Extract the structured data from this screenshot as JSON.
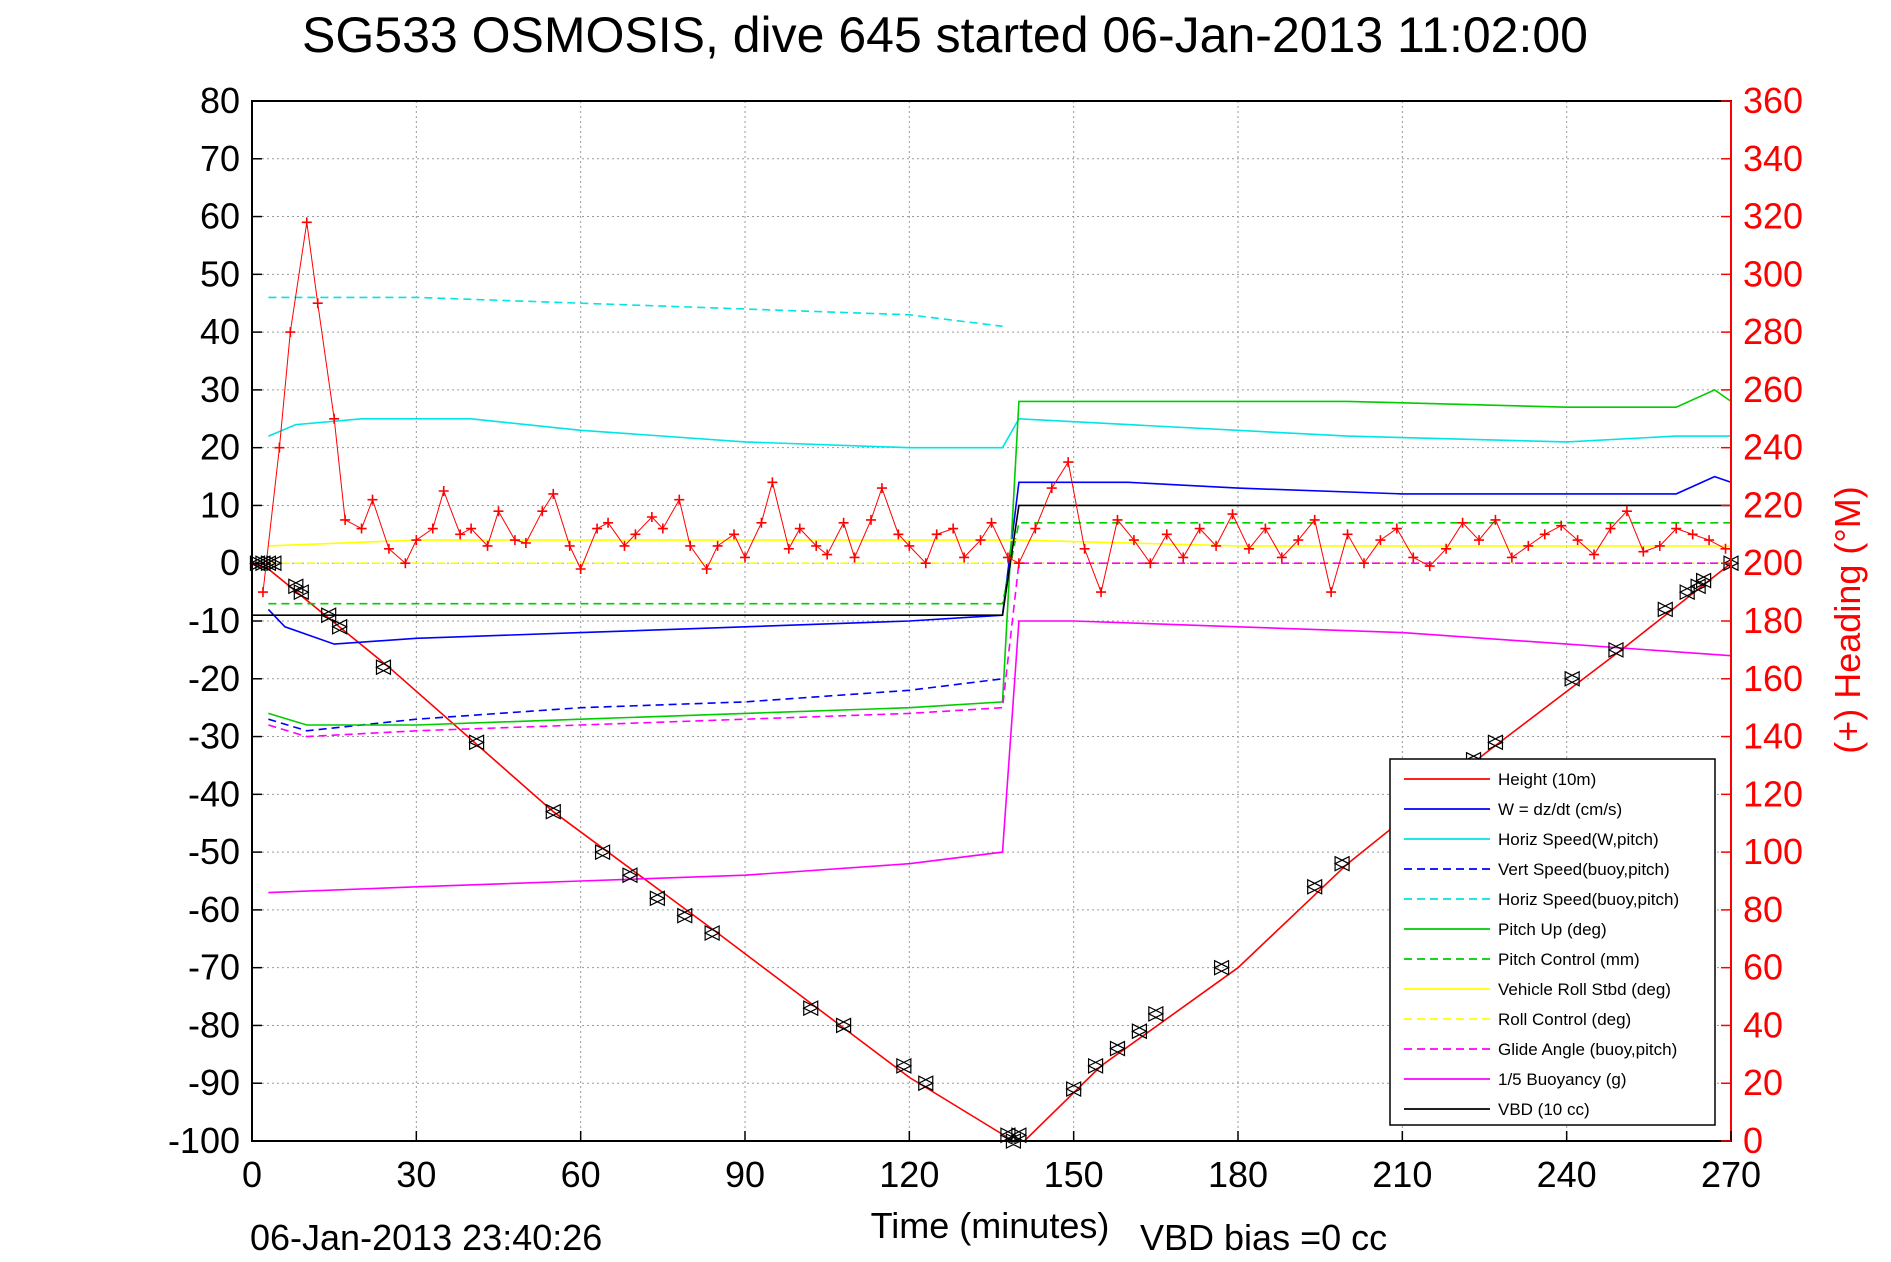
{
  "chart_data": {
    "type": "line",
    "title": "SG533 OSMOSIS, dive 645 started 06-Jan-2013 11:02:00",
    "xlabel": "Time (minutes)",
    "ylabel_right": "(+) Heading (°M)",
    "footer_date": "06-Jan-2013 23:40:26",
    "footer_vbd": "VBD bias =0 cc",
    "xlim": [
      0,
      270
    ],
    "ylim_left": [
      -100,
      80
    ],
    "ylim_right": [
      0,
      360
    ],
    "grid": true,
    "legend_placement": "bottom-right",
    "x_ticks": [
      "0",
      "30",
      "60",
      "90",
      "120",
      "150",
      "180",
      "210",
      "240",
      "270"
    ],
    "y_left_ticks": [
      "80",
      "70",
      "60",
      "50",
      "40",
      "30",
      "20",
      "10",
      "0",
      "-10",
      "-20",
      "-30",
      "-40",
      "-50",
      "-60",
      "-70",
      "-80",
      "-90",
      "-100"
    ],
    "y_right_ticks": [
      "360",
      "340",
      "320",
      "300",
      "280",
      "260",
      "240",
      "220",
      "200",
      "180",
      "160",
      "140",
      "120",
      "100",
      "80",
      "60",
      "40",
      "20",
      "0"
    ],
    "legend": [
      {
        "label": "Height (10m)",
        "color": "#ff0000",
        "dash": "solid"
      },
      {
        "label": "W  = dz/dt (cm/s)",
        "color": "#0000ff",
        "dash": "solid"
      },
      {
        "label": "Horiz Speed(W,pitch)",
        "color": "#00e5e5",
        "dash": "solid"
      },
      {
        "label": "Vert Speed(buoy,pitch)",
        "color": "#0000ff",
        "dash": "dashed"
      },
      {
        "label": "Horiz Speed(buoy,pitch)",
        "color": "#00e5e5",
        "dash": "dashed"
      },
      {
        "label": "Pitch Up (deg)",
        "color": "#00cc00",
        "dash": "solid"
      },
      {
        "label": "Pitch Control (mm)",
        "color": "#00cc00",
        "dash": "dashed"
      },
      {
        "label": "Vehicle Roll Stbd (deg)",
        "color": "#ffff00",
        "dash": "solid"
      },
      {
        "label": "Roll Control (deg)",
        "color": "#ffff00",
        "dash": "dashed"
      },
      {
        "label": "Glide Angle (buoy,pitch)",
        "color": "#ff00ff",
        "dash": "dashed"
      },
      {
        "label": "1/5 Buoyancy (g)",
        "color": "#ff00ff",
        "dash": "solid"
      },
      {
        "label": "VBD (10 cc)",
        "color": "#000000",
        "dash": "solid"
      }
    ],
    "series": [
      {
        "name": "Height (10m)",
        "color": "#ff0000",
        "x": [
          0,
          3,
          25,
          55,
          85,
          120,
          139,
          141,
          155,
          180,
          200,
          225,
          250,
          270
        ],
        "y": [
          0,
          -1,
          -18,
          -43,
          -64,
          -89,
          -100,
          -100,
          -87,
          -70,
          -52,
          -33,
          -15,
          0
        ]
      },
      {
        "name": "W  = dz/dt (cm/s)",
        "color": "#0000ff",
        "x": [
          3,
          6,
          15,
          30,
          60,
          90,
          120,
          137,
          140,
          160,
          180,
          210,
          240,
          260,
          267,
          270
        ],
        "y": [
          -8,
          -11,
          -14,
          -13,
          -12,
          -11,
          -10,
          -9,
          14,
          14,
          13,
          12,
          12,
          12,
          15,
          14
        ]
      },
      {
        "name": "Horiz Speed(W,pitch)",
        "color": "#00e5e5",
        "x": [
          3,
          8,
          20,
          40,
          60,
          90,
          120,
          137,
          140,
          160,
          200,
          240,
          260,
          270
        ],
        "y": [
          22,
          24,
          25,
          25,
          23,
          21,
          20,
          20,
          25,
          24,
          22,
          21,
          22,
          22
        ]
      },
      {
        "name": "Vert Speed(buoy,pitch)",
        "color": "#0000ff",
        "x": [
          3,
          10,
          30,
          60,
          90,
          120,
          137
        ],
        "y": [
          -27,
          -29,
          -27,
          -25,
          -24,
          -22,
          -20
        ]
      },
      {
        "name": "Horiz Speed(buoy,pitch)",
        "color": "#00e5e5",
        "x": [
          3,
          10,
          30,
          60,
          90,
          120,
          137
        ],
        "y": [
          46,
          46,
          46,
          45,
          44,
          43,
          41
        ]
      },
      {
        "name": "Pitch Up (deg)",
        "color": "#00cc00",
        "x": [
          3,
          10,
          30,
          60,
          90,
          120,
          137,
          140,
          160,
          200,
          240,
          260,
          267,
          270
        ],
        "y": [
          -26,
          -28,
          -28,
          -27,
          -26,
          -25,
          -24,
          28,
          28,
          28,
          27,
          27,
          30,
          28
        ]
      },
      {
        "name": "Pitch Control (mm)",
        "color": "#00cc00",
        "x": [
          3,
          10,
          60,
          120,
          137,
          140,
          200,
          270
        ],
        "y": [
          -7,
          -7,
          -7,
          -7,
          -7,
          7,
          7,
          7
        ]
      },
      {
        "name": "Vehicle Roll Stbd (deg)",
        "color": "#ffff00",
        "x": [
          3,
          30,
          60,
          90,
          120,
          137,
          140,
          180,
          220,
          270
        ],
        "y": [
          3,
          4,
          4,
          4,
          4,
          4,
          4,
          3,
          3,
          3
        ]
      },
      {
        "name": "Roll Control (deg)",
        "color": "#ffff00",
        "x": [
          3,
          60,
          137,
          140,
          270
        ],
        "y": [
          0,
          0,
          0,
          0,
          0
        ]
      },
      {
        "name": "Glide Angle (buoy,pitch)",
        "color": "#ff00ff",
        "x": [
          3,
          10,
          30,
          60,
          90,
          120,
          137,
          140,
          200,
          270
        ],
        "y": [
          -28,
          -30,
          -29,
          -28,
          -27,
          -26,
          -25,
          0,
          0,
          0
        ]
      },
      {
        "name": "1/5 Buoyancy (g)",
        "color": "#ff00ff",
        "x": [
          3,
          30,
          60,
          90,
          120,
          137,
          140,
          150,
          180,
          210,
          240,
          270
        ],
        "y": [
          -57,
          -56,
          -55,
          -54,
          -52,
          -50,
          -10,
          -10,
          -11,
          -12,
          -14,
          -16
        ]
      },
      {
        "name": "VBD (10 cc)",
        "color": "#000000",
        "x": [
          0,
          3,
          137,
          140,
          270
        ],
        "y": [
          -9,
          -9,
          -9,
          10,
          10
        ]
      }
    ],
    "heading": {
      "name": "Heading",
      "color": "#ff0000",
      "marker": "+",
      "axis": "right",
      "x": [
        2,
        5,
        7,
        10,
        12,
        15,
        17,
        20,
        22,
        25,
        28,
        30,
        33,
        35,
        38,
        40,
        43,
        45,
        48,
        50,
        53,
        55,
        58,
        60,
        63,
        65,
        68,
        70,
        73,
        75,
        78,
        80,
        83,
        85,
        88,
        90,
        93,
        95,
        98,
        100,
        103,
        105,
        108,
        110,
        113,
        115,
        118,
        120,
        123,
        125,
        128,
        130,
        133,
        135,
        138,
        140,
        143,
        146,
        149,
        152,
        155,
        158,
        161,
        164,
        167,
        170,
        173,
        176,
        179,
        182,
        185,
        188,
        191,
        194,
        197,
        200,
        203,
        206,
        209,
        212,
        215,
        218,
        221,
        224,
        227,
        230,
        233,
        236,
        239,
        242,
        245,
        248,
        251,
        254,
        257,
        260,
        263,
        266,
        269
      ],
      "y": [
        190,
        240,
        280,
        318,
        290,
        250,
        215,
        212,
        222,
        205,
        200,
        208,
        212,
        225,
        210,
        212,
        206,
        218,
        208,
        207,
        218,
        224,
        206,
        198,
        212,
        214,
        206,
        210,
        216,
        212,
        222,
        206,
        198,
        206,
        210,
        202,
        214,
        228,
        205,
        212,
        206,
        203,
        214,
        202,
        215,
        226,
        210,
        206,
        200,
        210,
        212,
        202,
        208,
        214,
        202,
        200,
        212,
        226,
        235,
        205,
        190,
        215,
        208,
        200,
        210,
        202,
        212,
        206,
        217,
        205,
        212,
        202,
        208,
        215,
        190,
        210,
        200,
        208,
        212,
        202,
        199,
        205,
        214,
        208,
        215,
        202,
        206,
        210,
        213,
        208,
        203,
        212,
        218,
        204,
        206,
        212,
        210,
        208,
        205
      ]
    },
    "dive_markers": {
      "marker": "triangle",
      "color": "#000000",
      "x": [
        1,
        2,
        3,
        4,
        8,
        9,
        14,
        16,
        24,
        41,
        55,
        64,
        69,
        74,
        79,
        84,
        102,
        108,
        119,
        123,
        138,
        139,
        140,
        150,
        154,
        158,
        162,
        165,
        177,
        194,
        199,
        223,
        227,
        241,
        249,
        258,
        262,
        264,
        265,
        270
      ],
      "y": [
        0,
        0,
        0,
        0,
        -4,
        -5,
        -9,
        -11,
        -18,
        -31,
        -43,
        -50,
        -54,
        -58,
        -61,
        -64,
        -77,
        -80,
        -87,
        -90,
        -99,
        -100,
        -99,
        -91,
        -87,
        -84,
        -81,
        -78,
        -70,
        -56,
        -52,
        -34,
        -31,
        -20,
        -15,
        -8,
        -5,
        -4,
        -3,
        0
      ]
    }
  }
}
